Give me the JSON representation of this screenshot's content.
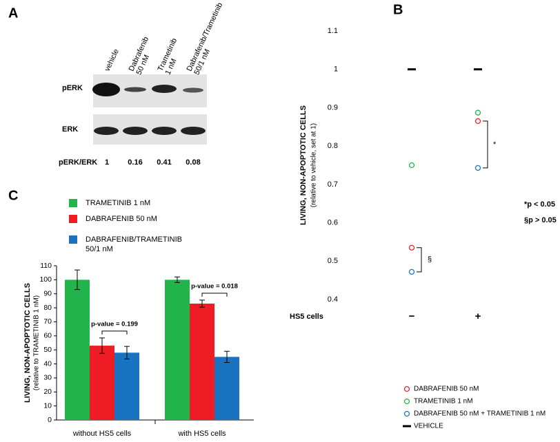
{
  "blot": {
    "panel_label": "A",
    "lanes": [
      "vehicle",
      "Dabrafenib\n50 nM",
      "Trametinib\n1 nM",
      "Dabrafenib/Trametinib\n50/1 nM"
    ],
    "rows": [
      "pERK",
      "ERK"
    ],
    "ratio_label": "pERK/ERK",
    "ratios": [
      "1",
      "0.16",
      "0.41",
      "0.08"
    ]
  },
  "chart_data": [
    {
      "type": "scatter",
      "panel_label": "B",
      "y_label": "LIVING, NON-APOPTOTIC CELLS",
      "y_sublabel": "(relative to vehicle, set at 1)",
      "x_label": "HS5 cells",
      "categories": [
        "−",
        "+"
      ],
      "ylim": [
        0.4,
        1.1
      ],
      "yticks": [
        0.4,
        0.5,
        0.6,
        0.7,
        0.8,
        0.9,
        1,
        1.1
      ],
      "series": [
        {
          "name": "DABRAFENIB 50 nM",
          "color": "#e0262a",
          "marker": "circle",
          "values": [
            0.535,
            0.865
          ]
        },
        {
          "name": "TRAMETINIB 1 nM",
          "color": "#22b34b",
          "marker": "circle",
          "values": [
            0.75,
            0.887
          ]
        },
        {
          "name": "DABRAFENIB 50 nM + TRAMETINIB 1 nM",
          "color": "#1f77b4",
          "marker": "circle",
          "values": [
            0.472,
            0.743
          ]
        },
        {
          "name": "VEHICLE",
          "color": "#000000",
          "marker": "dash",
          "values": [
            1,
            1
          ]
        }
      ],
      "annotations": [
        "§",
        "*",
        "*p < 0.05",
        "§p > 0.05"
      ]
    },
    {
      "type": "bar",
      "panel_label": "C",
      "y_label": "LIVING, NON-APOPTOTIC CELLS",
      "y_sublabel": "(relative to TRAMETINIB 1 nM)",
      "categories": [
        "without HS5 cells",
        "with HS5 cells"
      ],
      "ylim": [
        0,
        110
      ],
      "yticks": [
        0,
        10,
        20,
        30,
        40,
        50,
        60,
        70,
        80,
        90,
        100,
        110
      ],
      "series": [
        {
          "name": "TRAMETINIB 1 nM",
          "color": "#22b34b",
          "values": [
            100,
            100
          ],
          "errors": [
            7,
            2
          ]
        },
        {
          "name": "DABRAFENIB 50 nM",
          "color": "#ee1c24",
          "values": [
            53,
            83
          ],
          "errors": [
            5.5,
            2.5
          ]
        },
        {
          "name": "DABRAFENIB/TRAMETINIB 50/1 nM",
          "color": "#1a73c0",
          "values": [
            48,
            45
          ],
          "errors": [
            4.5,
            4
          ]
        }
      ],
      "annotations": [
        "p-value = 0.199",
        "p-value = 0.018"
      ]
    }
  ]
}
